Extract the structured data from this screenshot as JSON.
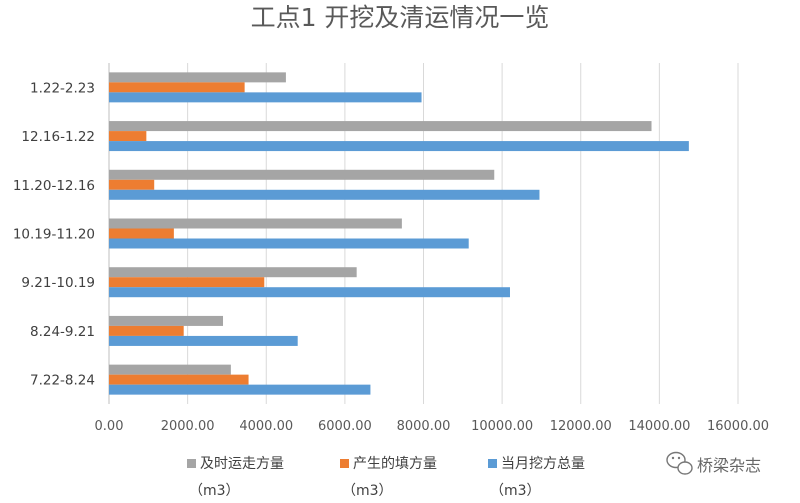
{
  "chart_data": {
    "type": "bar",
    "orientation": "horizontal",
    "title": "工点1 开挖及清运情况一览",
    "categories": [
      "1.22-2.23",
      "12.16-1.22",
      "11.20-12.16",
      "10.19-11.20",
      "9.21-10.19",
      "8.24-9.21",
      "7.22-8.24"
    ],
    "series": [
      {
        "name": "及时运走方量",
        "unit": "（m3）",
        "color": "#a5a5a5",
        "values": [
          4500,
          13800,
          9800,
          7450,
          6300,
          2900,
          3100
        ]
      },
      {
        "name": "产生的填方量",
        "unit": "（m3）",
        "color": "#ed7d31",
        "values": [
          3450,
          950,
          1150,
          1650,
          3950,
          1900,
          3550
        ]
      },
      {
        "name": "当月挖方总量",
        "unit": "（m3）",
        "color": "#5b9bd5",
        "values": [
          7950,
          14750,
          10950,
          9150,
          10200,
          4800,
          6650
        ]
      }
    ],
    "xlim": [
      0,
      16000
    ],
    "xticks": [
      0,
      2000,
      4000,
      6000,
      8000,
      10000,
      12000,
      14000,
      16000
    ],
    "xtick_labels": [
      "0.00",
      "2000.00",
      "4000.00",
      "6000.00",
      "8000.00",
      "10000.00",
      "12000.00",
      "14000.00",
      "16000.00"
    ],
    "grid": true,
    "legend_position": "bottom"
  },
  "watermark": {
    "text": "桥梁杂志",
    "icon": "wechat-icon"
  }
}
